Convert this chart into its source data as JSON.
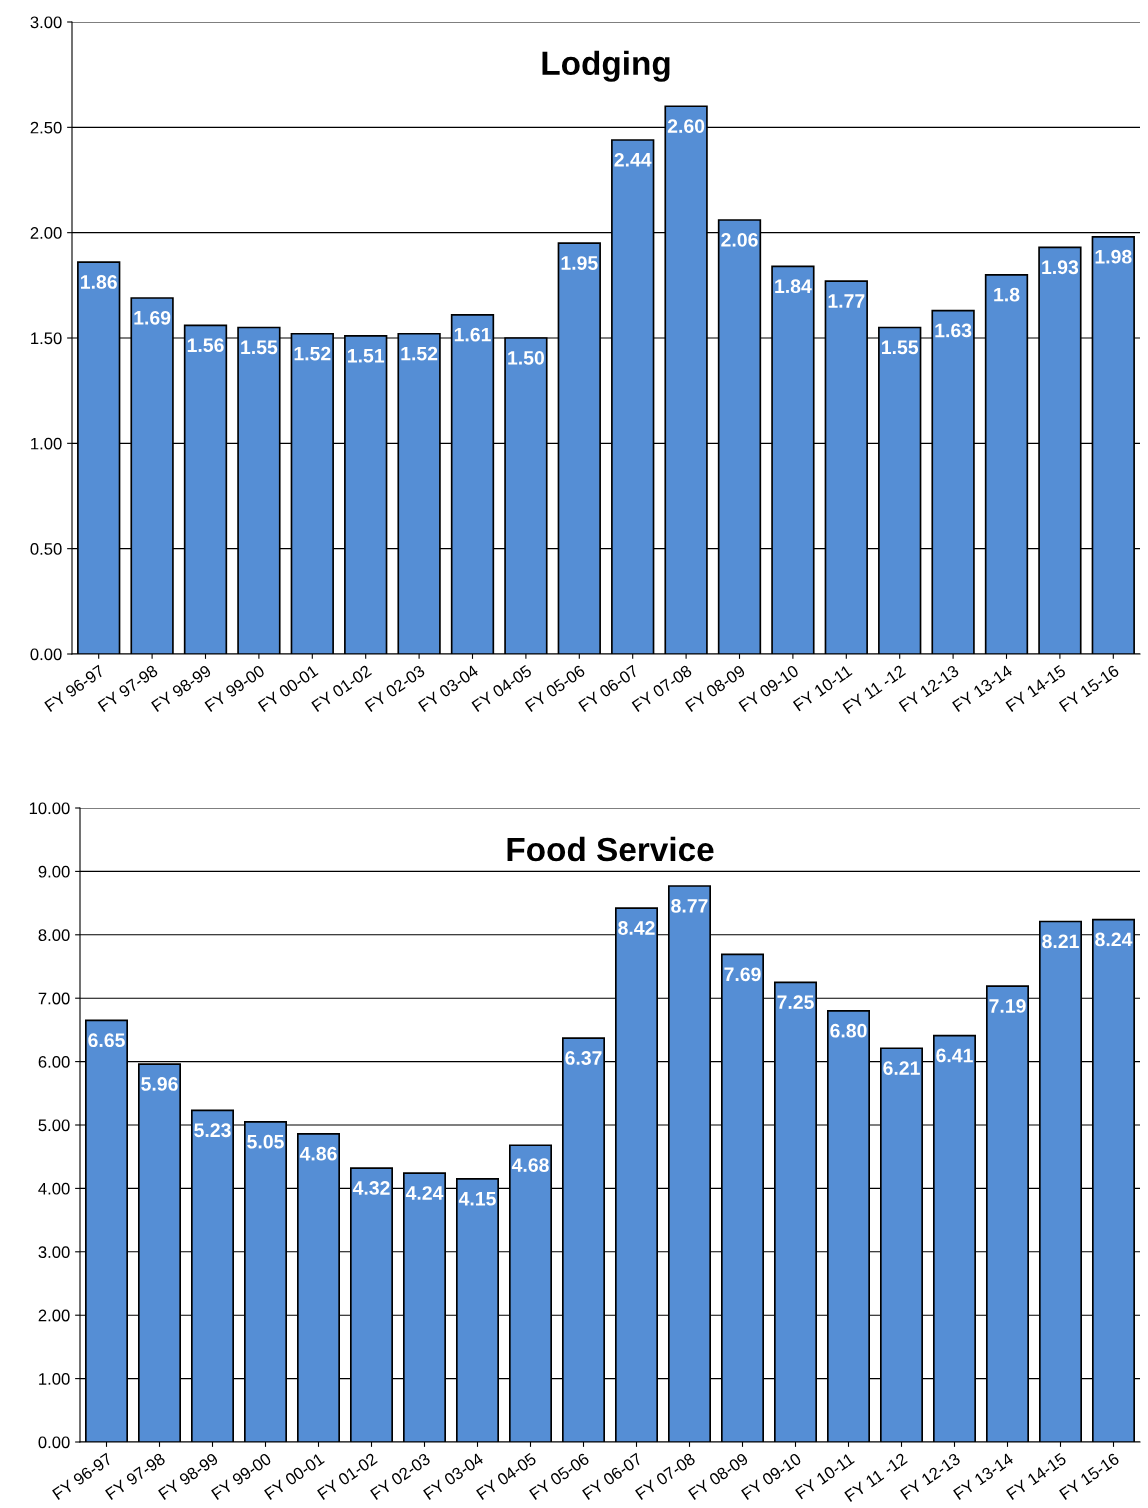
{
  "chart_data": [
    {
      "type": "bar",
      "title": "Lodging",
      "categories": [
        "FY 96-97",
        "FY 97-98",
        "FY 98-99",
        "FY 99-00",
        "FY 00-01",
        "FY 01-02",
        "FY 02-03",
        "FY 03-04",
        "FY 04-05",
        "FY 05-06",
        "FY 06-07",
        "FY 07-08",
        "FY 08-09",
        "FY 09-10",
        "FY 10-11",
        "FY 11 -12",
        "FY 12-13",
        "FY 13-14",
        "FY 14-15",
        "FY 15-16"
      ],
      "values": [
        1.86,
        1.69,
        1.56,
        1.55,
        1.52,
        1.51,
        1.52,
        1.61,
        1.5,
        1.95,
        2.44,
        2.6,
        2.06,
        1.84,
        1.77,
        1.55,
        1.63,
        1.8,
        1.93,
        1.98
      ],
      "value_labels": [
        "1.86",
        "1.69",
        "1.56",
        "1.55",
        "1.52",
        "1.51",
        "1.52",
        "1.61",
        "1.50",
        "1.95",
        "2.44",
        "2.60",
        "2.06",
        "1.84",
        "1.77",
        "1.55",
        "1.63",
        "1.8",
        "1.93",
        "1.98"
      ],
      "color": "#558ed5",
      "ylim": [
        0,
        3
      ],
      "yticks": [
        {
          "value": 0,
          "label": "0.00"
        },
        {
          "value": 0.5,
          "label": "0.50"
        },
        {
          "value": 1,
          "label": "1.00"
        },
        {
          "value": 1.5,
          "label": "1.50"
        },
        {
          "value": 2,
          "label": "2.00"
        },
        {
          "value": 2.5,
          "label": "2.50"
        },
        {
          "value": 3,
          "label": "3.00"
        }
      ],
      "grid": "y",
      "legend": false
    },
    {
      "type": "bar",
      "title": "Food Service",
      "categories": [
        "FY 96-97",
        "FY 97-98",
        "FY 98-99",
        "FY 99-00",
        "FY 00-01",
        "FY 01-02",
        "FY 02-03",
        "FY 03-04",
        "FY 04-05",
        "FY 05-06",
        "FY 06-07",
        "FY 07-08",
        "FY 08-09",
        "FY 09-10",
        "FY 10-11",
        "FY 11 -12",
        "FY 12-13",
        "FY 13-14",
        "FY 14-15",
        "FY 15-16"
      ],
      "values": [
        6.65,
        5.96,
        5.23,
        5.05,
        4.86,
        4.32,
        4.24,
        4.15,
        4.68,
        6.37,
        8.42,
        8.77,
        7.69,
        7.25,
        6.8,
        6.21,
        6.41,
        7.19,
        8.21,
        8.24
      ],
      "value_labels": [
        "6.65",
        "5.96",
        "5.23",
        "5.05",
        "4.86",
        "4.32",
        "4.24",
        "4.15",
        "4.68",
        "6.37",
        "8.42",
        "8.77",
        "7.69",
        "7.25",
        "6.80",
        "6.21",
        "6.41",
        "7.19",
        "8.21",
        "8.24"
      ],
      "color": "#558ed5",
      "ylim": [
        0,
        10
      ],
      "yticks": [
        {
          "value": 0,
          "label": "0.00"
        },
        {
          "value": 1,
          "label": "1.00"
        },
        {
          "value": 2,
          "label": "2.00"
        },
        {
          "value": 3,
          "label": "3.00"
        },
        {
          "value": 4,
          "label": "4.00"
        },
        {
          "value": 5,
          "label": "5.00"
        },
        {
          "value": 6,
          "label": "6.00"
        },
        {
          "value": 7,
          "label": "7.00"
        },
        {
          "value": 8,
          "label": "8.00"
        },
        {
          "value": 9,
          "label": "9.00"
        },
        {
          "value": 10,
          "label": "10.00"
        }
      ],
      "grid": "y",
      "legend": false
    }
  ]
}
